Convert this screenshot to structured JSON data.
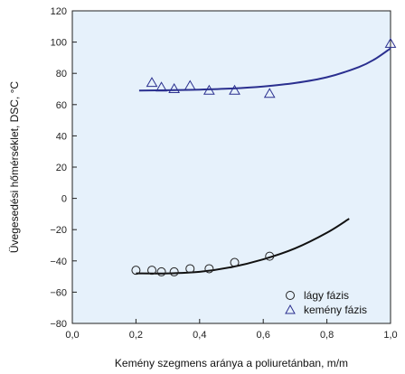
{
  "chart_data": {
    "type": "scatter",
    "xlabel": "Kemény szegmens aránya a poliuretánban, m/m",
    "ylabel": "Üvegesedési hőmérséklet, DSC, °C",
    "xlim": [
      0.0,
      1.0
    ],
    "ylim": [
      -80,
      120
    ],
    "x_ticks": [
      "0,0",
      "0,2",
      "0,4",
      "0,6",
      "0,8",
      "1,0"
    ],
    "y_ticks": [
      "−80",
      "−60",
      "−40",
      "−20",
      "0",
      "20",
      "40",
      "60",
      "80",
      "100",
      "120"
    ],
    "plot_background": "#e6f1fb",
    "legend_position": "bottom-right",
    "series": [
      {
        "name": "lágy fázis",
        "marker": "circle",
        "color": "#222222",
        "points": [
          {
            "x": 0.2,
            "y": -46
          },
          {
            "x": 0.25,
            "y": -46
          },
          {
            "x": 0.28,
            "y": -47
          },
          {
            "x": 0.32,
            "y": -47
          },
          {
            "x": 0.37,
            "y": -45
          },
          {
            "x": 0.43,
            "y": -45
          },
          {
            "x": 0.51,
            "y": -41
          },
          {
            "x": 0.62,
            "y": -37
          }
        ],
        "fit": {
          "color": "#111111",
          "points": [
            {
              "x": 0.2,
              "y": -48
            },
            {
              "x": 0.3,
              "y": -48
            },
            {
              "x": 0.4,
              "y": -47
            },
            {
              "x": 0.5,
              "y": -44
            },
            {
              "x": 0.6,
              "y": -39
            },
            {
              "x": 0.7,
              "y": -32
            },
            {
              "x": 0.8,
              "y": -22
            },
            {
              "x": 0.87,
              "y": -13
            }
          ]
        }
      },
      {
        "name": "kemény fázis",
        "marker": "triangle",
        "color": "#2a2f8f",
        "points": [
          {
            "x": 0.25,
            "y": 74
          },
          {
            "x": 0.28,
            "y": 71
          },
          {
            "x": 0.32,
            "y": 70
          },
          {
            "x": 0.37,
            "y": 72
          },
          {
            "x": 0.43,
            "y": 69
          },
          {
            "x": 0.51,
            "y": 69
          },
          {
            "x": 0.62,
            "y": 67
          },
          {
            "x": 1.0,
            "y": 99
          }
        ],
        "fit": {
          "color": "#2a2f8f",
          "points": [
            {
              "x": 0.21,
              "y": 69
            },
            {
              "x": 0.3,
              "y": 69.2
            },
            {
              "x": 0.4,
              "y": 69.6
            },
            {
              "x": 0.5,
              "y": 70.3
            },
            {
              "x": 0.6,
              "y": 71.6
            },
            {
              "x": 0.7,
              "y": 73.8
            },
            {
              "x": 0.8,
              "y": 77.5
            },
            {
              "x": 0.9,
              "y": 84
            },
            {
              "x": 0.95,
              "y": 89
            },
            {
              "x": 1.0,
              "y": 96
            }
          ]
        }
      }
    ]
  }
}
